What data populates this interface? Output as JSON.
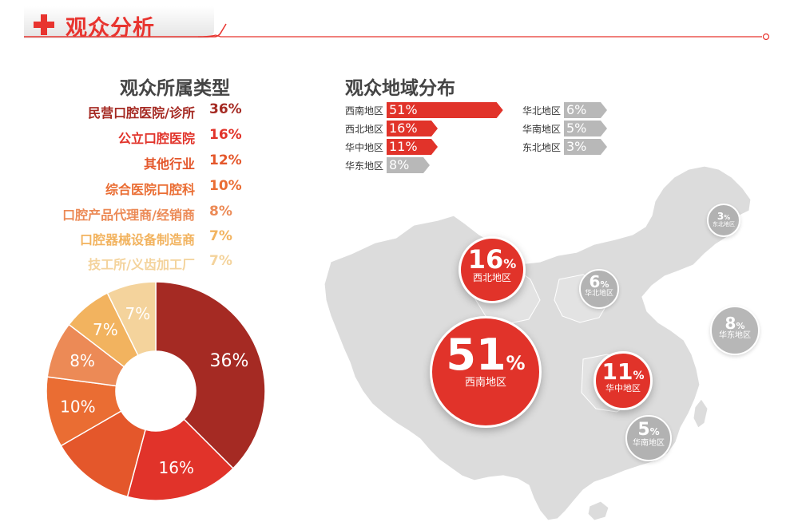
{
  "header": {
    "title": "观众分析",
    "accent": "#e8342f"
  },
  "audience_type": {
    "title": "观众所属类型",
    "items": [
      {
        "label": "民营口腔医院/诊所",
        "value": "36%",
        "color": "#a52a23"
      },
      {
        "label": "公立口腔医院",
        "value": "16%",
        "color": "#e1332a"
      },
      {
        "label": "其他行业",
        "value": "12%",
        "color": "#e4572b"
      },
      {
        "label": "综合医院口腔科",
        "value": "10%",
        "color": "#ea6d33"
      },
      {
        "label": "口腔产品代理商/经销商",
        "value": "8%",
        "color": "#ec8a56"
      },
      {
        "label": "口腔器械设备制造商",
        "value": "7%",
        "color": "#f2b35f"
      },
      {
        "label": "技工所/义齿加工厂",
        "value": "7%",
        "color": "#f4d39c"
      }
    ]
  },
  "chart_data": {
    "type": "pie",
    "categories": [
      "民营口腔医院/诊所",
      "公立口腔医院",
      "其他行业",
      "综合医院口腔科",
      "口腔产品代理商/经销商",
      "口腔器械设备制造商",
      "技工所/义齿加工厂"
    ],
    "values": [
      36,
      16,
      12,
      10,
      8,
      7,
      7
    ],
    "labels": [
      "36%",
      "16%",
      "",
      "10%",
      "8%",
      "7%",
      "7%"
    ]
  },
  "region": {
    "title": "观众地域分布",
    "bars": [
      {
        "label": "西南地区",
        "value": "51%",
        "pct": 51,
        "style": "red"
      },
      {
        "label": "西北地区",
        "value": "16%",
        "pct": 16,
        "style": "red"
      },
      {
        "label": "华中地区",
        "value": "11%",
        "pct": 11,
        "style": "red"
      },
      {
        "label": "华东地区",
        "value": "8%",
        "pct": 8,
        "style": "gray"
      },
      {
        "label": "华北地区",
        "value": "6%",
        "pct": 6,
        "style": "gray"
      },
      {
        "label": "华南地区",
        "value": "5%",
        "pct": 5,
        "style": "gray"
      },
      {
        "label": "东北地区",
        "value": "3%",
        "pct": 3,
        "style": "gray"
      }
    ],
    "bubbles": [
      {
        "num": "51",
        "pct": "%",
        "name": "西南地区",
        "style": "red"
      },
      {
        "num": "16",
        "pct": "%",
        "name": "西北地区",
        "style": "red"
      },
      {
        "num": "11",
        "pct": "%",
        "name": "华中地区",
        "style": "red"
      },
      {
        "num": "8",
        "pct": "%",
        "name": "华东地区",
        "style": "gray"
      },
      {
        "num": "6",
        "pct": "%",
        "name": "华北地区",
        "style": "gray"
      },
      {
        "num": "5",
        "pct": "%",
        "name": "华南地区",
        "style": "gray"
      },
      {
        "num": "3",
        "pct": "%",
        "name": "东北地区",
        "style": "gray"
      }
    ]
  }
}
